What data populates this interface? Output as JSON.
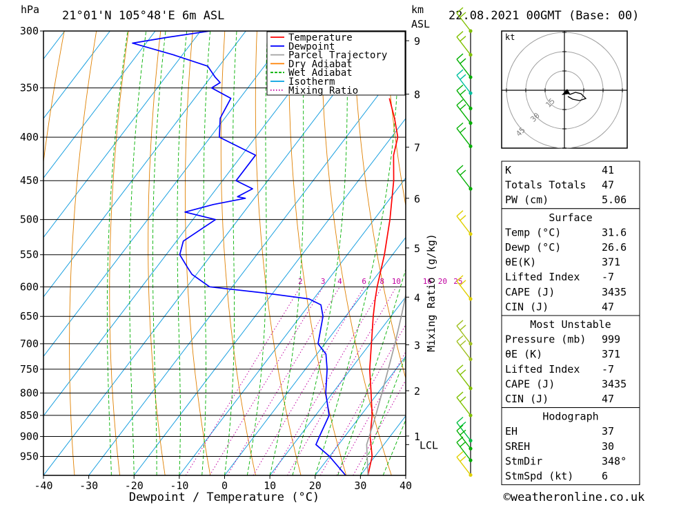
{
  "header": {
    "pressure_unit": "hPa",
    "location": "21°01'N 105°48'E 6m ASL",
    "height_unit_km": "km",
    "height_unit_asl": "ASL",
    "datetime": "22.08.2021 00GMT (Base: 00)"
  },
  "legend": {
    "items": [
      {
        "label": "Temperature",
        "color": "#ff0000",
        "style": "solid"
      },
      {
        "label": "Dewpoint",
        "color": "#0000ff",
        "style": "solid"
      },
      {
        "label": "Parcel Trajectory",
        "color": "#a0a0a0",
        "style": "solid"
      },
      {
        "label": "Dry Adiabat",
        "color": "#ff8000",
        "style": "solid"
      },
      {
        "label": "Wet Adiabat",
        "color": "#00b000",
        "style": "dashed"
      },
      {
        "label": "Isotherm",
        "color": "#00a0e0",
        "style": "solid"
      },
      {
        "label": "Mixing Ratio",
        "color": "#c000a0",
        "style": "dotted"
      }
    ]
  },
  "chart_data": {
    "type": "skew-t",
    "xlabel": "Dewpoint / Temperature (°C)",
    "ylabel": "hPa",
    "xlim": [
      -40,
      40
    ],
    "x_ticks": [
      -40,
      -30,
      -20,
      -10,
      0,
      10,
      20,
      30,
      40
    ],
    "pressure_levels": [
      300,
      350,
      400,
      450,
      500,
      550,
      600,
      650,
      700,
      750,
      800,
      850,
      900,
      950
    ],
    "height_km_ticks": [
      {
        "km": 1,
        "pressure": 899
      },
      {
        "km": 2,
        "pressure": 795
      },
      {
        "km": 3,
        "pressure": 702
      },
      {
        "km": 4,
        "pressure": 617
      },
      {
        "km": 5,
        "pressure": 540
      },
      {
        "km": 6,
        "pressure": 472
      },
      {
        "km": 7,
        "pressure": 411
      },
      {
        "km": 8,
        "pressure": 356
      },
      {
        "km": 9,
        "pressure": 308
      }
    ],
    "lcl_label": "LCL",
    "lcl_pressure": 920,
    "mixing_ratio_axis_label": "Mixing Ratio (g/kg)",
    "mixing_ratio_labels": [
      "2",
      "3",
      "4",
      "6",
      "8",
      "10",
      "16",
      "20",
      "25"
    ],
    "mixing_ratio_values": [
      2,
      3,
      4,
      6,
      8,
      10,
      16,
      20,
      25
    ],
    "series": [
      {
        "name": "Temperature",
        "points": [
          [
            999,
            31.6
          ],
          [
            950,
            29.4
          ],
          [
            900,
            25.6
          ],
          [
            850,
            22.5
          ],
          [
            800,
            18.5
          ],
          [
            750,
            14.2
          ],
          [
            700,
            10.3
          ],
          [
            650,
            6.1
          ],
          [
            620,
            3.6
          ],
          [
            600,
            2.0
          ],
          [
            550,
            -1.8
          ],
          [
            500,
            -6.5
          ],
          [
            450,
            -12.2
          ],
          [
            420,
            -16.5
          ],
          [
            400,
            -18.6
          ],
          [
            380,
            -22.5
          ],
          [
            360,
            -27.0
          ]
        ]
      },
      {
        "name": "Dewpoint",
        "points": [
          [
            999,
            26.6
          ],
          [
            950,
            20.0
          ],
          [
            920,
            15.0
          ],
          [
            900,
            14.4
          ],
          [
            850,
            13.0
          ],
          [
            800,
            8.5
          ],
          [
            750,
            4.8
          ],
          [
            720,
            2.0
          ],
          [
            700,
            -1.5
          ],
          [
            650,
            -5.0
          ],
          [
            630,
            -7.4
          ],
          [
            620,
            -11.0
          ],
          [
            610,
            -22.0
          ],
          [
            600,
            -35.0
          ],
          [
            580,
            -41.0
          ],
          [
            570,
            -43.0
          ],
          [
            550,
            -47.0
          ],
          [
            530,
            -48.5
          ],
          [
            500,
            -45.0
          ],
          [
            490,
            -53.0
          ],
          [
            480,
            -48.0
          ],
          [
            472,
            -42.0
          ],
          [
            470,
            -44.0
          ],
          [
            460,
            -42.0
          ],
          [
            450,
            -47.0
          ],
          [
            420,
            -47.0
          ],
          [
            400,
            -58.0
          ],
          [
            380,
            -61.0
          ],
          [
            360,
            -62.0
          ],
          [
            350,
            -68.0
          ],
          [
            345,
            -67.0
          ],
          [
            340,
            -69.0
          ],
          [
            330,
            -72.5
          ],
          [
            320,
            -82.0
          ],
          [
            310,
            -93.0
          ],
          [
            305,
            -86.0
          ],
          [
            300,
            -78.0
          ]
        ]
      },
      {
        "name": "Parcel Trajectory",
        "points": [
          [
            999,
            31.6
          ],
          [
            920,
            26.2
          ],
          [
            900,
            25.4
          ],
          [
            850,
            23.3
          ],
          [
            800,
            20.9
          ],
          [
            750,
            18.3
          ],
          [
            700,
            15.5
          ],
          [
            650,
            12.3
          ],
          [
            600,
            8.7
          ],
          [
            550,
            4.6
          ],
          [
            500,
            -0.1
          ],
          [
            450,
            -5.6
          ],
          [
            400,
            -12.2
          ],
          [
            360,
            -18.4
          ]
        ]
      }
    ],
    "hodograph": {
      "unit": "kt",
      "ring_labels": [
        "15",
        "30",
        "45"
      ],
      "ring_values": [
        15,
        30,
        45
      ]
    }
  },
  "indices": {
    "rows": [
      {
        "label": "K",
        "value": "41"
      },
      {
        "label": "Totals Totals",
        "value": "47"
      },
      {
        "label": "PW (cm)",
        "value": "5.06"
      }
    ]
  },
  "surface": {
    "title": "Surface",
    "rows": [
      {
        "label": "Temp (°C)",
        "value": "31.6"
      },
      {
        "label": "Dewp (°C)",
        "value": "26.6"
      },
      {
        "label": "θE(K)",
        "value": "371"
      },
      {
        "label": "Lifted Index",
        "value": "-7"
      },
      {
        "label": "CAPE (J)",
        "value": "3435"
      },
      {
        "label": "CIN (J)",
        "value": "47"
      }
    ]
  },
  "most_unstable": {
    "title": "Most Unstable",
    "rows": [
      {
        "label": "Pressure (mb)",
        "value": "999"
      },
      {
        "label": "θE (K)",
        "value": "371"
      },
      {
        "label": "Lifted Index",
        "value": "-7"
      },
      {
        "label": "CAPE (J)",
        "value": "3435"
      },
      {
        "label": "CIN (J)",
        "value": "47"
      }
    ]
  },
  "hodograph_table": {
    "title": "Hodograph",
    "rows": [
      {
        "label": "EH",
        "value": "37"
      },
      {
        "label": "SREH",
        "value": "30"
      },
      {
        "label": "StmDir",
        "value": "348°"
      },
      {
        "label": "StmSpd (kt)",
        "value": "6"
      }
    ]
  },
  "footer": {
    "copyright": "©weatheronline.co.uk"
  }
}
